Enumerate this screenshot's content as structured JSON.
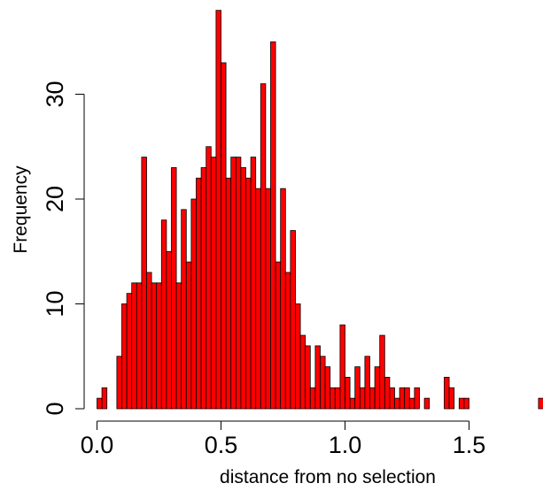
{
  "chart_data": {
    "type": "bar",
    "title": "",
    "xlabel": "distance from no selection",
    "ylabel": "Frequency",
    "xlim": [
      0,
      1.8
    ],
    "ylim": [
      0,
      38
    ],
    "bin_width": 0.02,
    "x_ticks": [
      0.0,
      0.5,
      1.0,
      1.5
    ],
    "x_tick_labels": [
      "0.0",
      "0.5",
      "1.0",
      "1.5"
    ],
    "y_ticks": [
      0,
      10,
      20,
      30
    ],
    "y_tick_labels": [
      "0",
      "10",
      "20",
      "30"
    ],
    "grid": false,
    "legend": "none",
    "bar_color": "#ff0000",
    "bar_edge_color": "#000000",
    "bin_starts": [
      0.0,
      0.02,
      0.04,
      0.06,
      0.08,
      0.1,
      0.12,
      0.14,
      0.16,
      0.18,
      0.2,
      0.22,
      0.24,
      0.26,
      0.28,
      0.3,
      0.32,
      0.34,
      0.36,
      0.38,
      0.4,
      0.42,
      0.44,
      0.46,
      0.48,
      0.5,
      0.52,
      0.54,
      0.56,
      0.58,
      0.6,
      0.62,
      0.64,
      0.66,
      0.68,
      0.7,
      0.72,
      0.74,
      0.76,
      0.78,
      0.8,
      0.82,
      0.84,
      0.86,
      0.88,
      0.9,
      0.92,
      0.94,
      0.96,
      0.98,
      1.0,
      1.02,
      1.04,
      1.06,
      1.08,
      1.1,
      1.12,
      1.14,
      1.16,
      1.18,
      1.2,
      1.22,
      1.24,
      1.26,
      1.28,
      1.3,
      1.32,
      1.34,
      1.36,
      1.38,
      1.4,
      1.42,
      1.44,
      1.46,
      1.48,
      1.5,
      1.52,
      1.54,
      1.56,
      1.58,
      1.6,
      1.62,
      1.64,
      1.66,
      1.68,
      1.7,
      1.72,
      1.74,
      1.76,
      1.78
    ],
    "values": [
      1,
      2,
      0,
      0,
      5,
      10,
      11,
      12,
      12,
      24,
      13,
      12,
      12,
      18,
      15,
      23,
      12,
      19,
      14,
      20,
      22,
      23,
      25,
      24,
      38,
      33,
      22,
      24,
      24,
      23,
      22,
      24,
      21,
      31,
      21,
      35,
      14,
      21,
      13,
      17,
      10,
      7,
      6,
      2,
      6,
      5,
      4,
      2,
      2,
      8,
      3,
      1,
      4,
      2,
      5,
      2,
      4,
      7,
      3,
      2,
      1,
      2,
      2,
      1,
      2,
      0,
      1,
      0,
      0,
      0,
      3,
      2,
      0,
      1,
      1,
      0,
      0,
      0,
      0,
      0,
      0,
      0,
      0,
      0,
      0,
      0,
      0,
      0,
      0,
      1
    ]
  }
}
